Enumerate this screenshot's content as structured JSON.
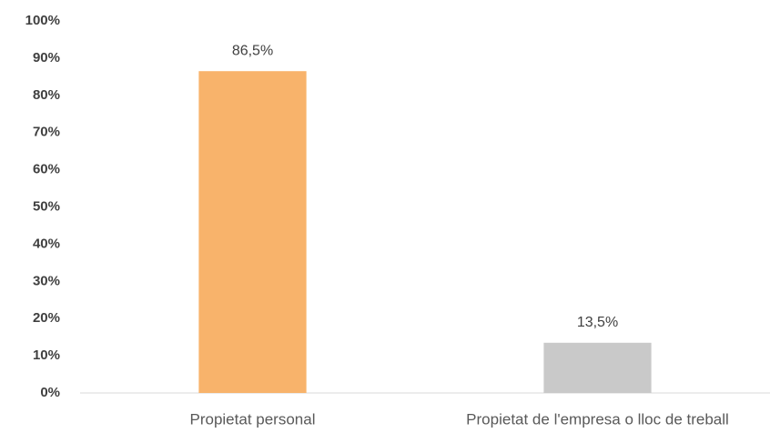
{
  "chart_data": {
    "type": "bar",
    "categories": [
      "Propietat personal",
      "Propietat de l'empresa o lloc de treball"
    ],
    "values": [
      86.5,
      13.5
    ],
    "value_labels": [
      "86,5%",
      "13,5%"
    ],
    "colors": [
      "#f8b36b",
      "#c9c9c9"
    ],
    "ylim": [
      0,
      100
    ],
    "yticks": [
      {
        "value": 0,
        "label": "0%"
      },
      {
        "value": 10,
        "label": "10%"
      },
      {
        "value": 20,
        "label": "20%"
      },
      {
        "value": 30,
        "label": "30%"
      },
      {
        "value": 40,
        "label": "40%"
      },
      {
        "value": 50,
        "label": "50%"
      },
      {
        "value": 60,
        "label": "60%"
      },
      {
        "value": 70,
        "label": "70%"
      },
      {
        "value": 80,
        "label": "80%"
      },
      {
        "value": 90,
        "label": "90%"
      },
      {
        "value": 100,
        "label": "100%"
      }
    ],
    "grid": false
  }
}
